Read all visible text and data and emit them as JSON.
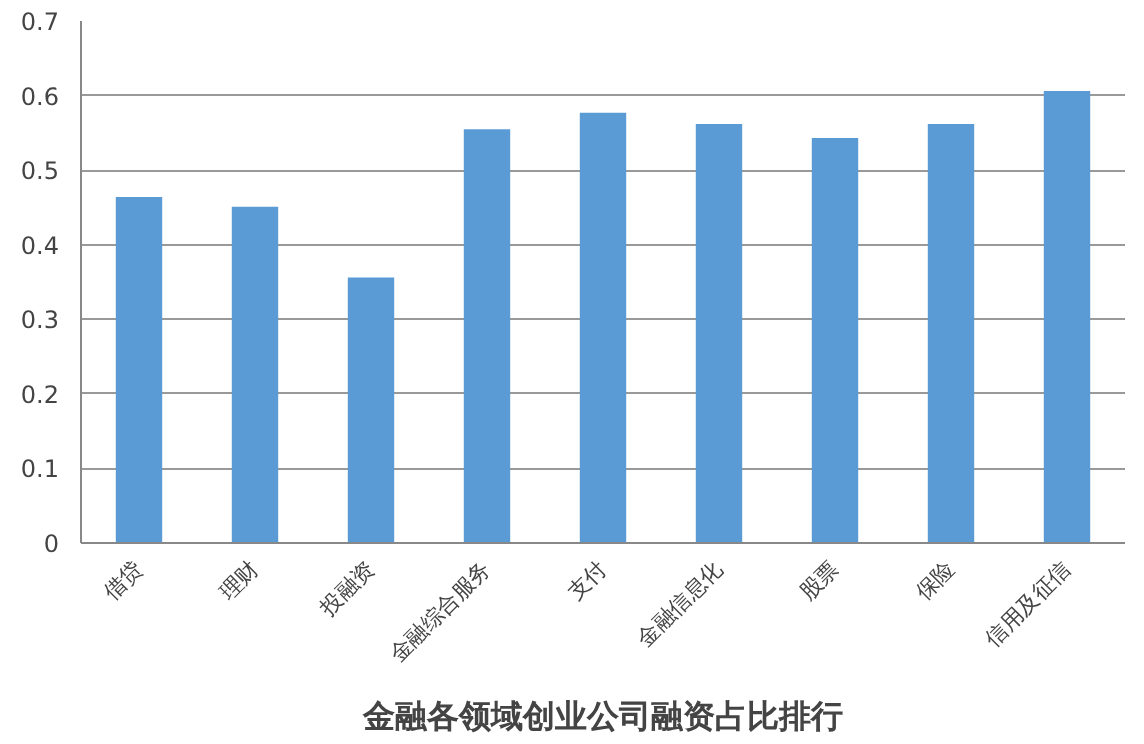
{
  "chart_data": {
    "type": "bar",
    "title": "金融各领域创业公司融资占比排行",
    "categories": [
      "借贷",
      "理财",
      "投融资",
      "金融综合服务",
      "支付",
      "金融信息化",
      "股票",
      "保险",
      "信用及征信"
    ],
    "values": [
      0.464,
      0.451,
      0.356,
      0.555,
      0.577,
      0.562,
      0.543,
      0.562,
      0.606
    ],
    "color": "#5b9bd5",
    "ylim": [
      0,
      0.7
    ],
    "yticks": [
      0,
      0.1,
      0.2,
      0.3,
      0.4,
      0.5,
      0.6,
      0.7
    ],
    "grid": "y"
  }
}
